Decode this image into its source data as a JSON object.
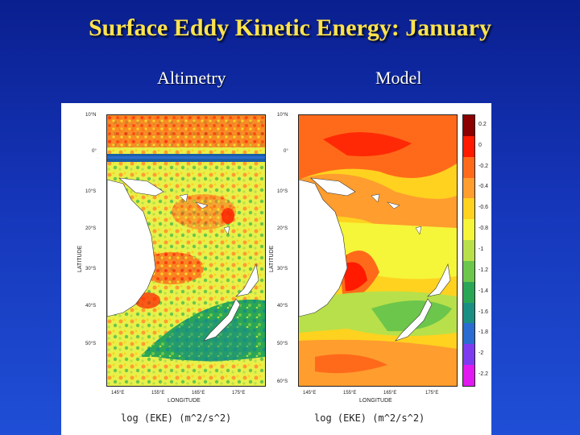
{
  "title": "Surface Eddy Kinetic Energy: January",
  "panels": {
    "left_label": "Altimetry",
    "right_label": "Model"
  },
  "left_map": {
    "lat_ticks": [
      "10°N",
      "0°",
      "10°S",
      "20°S",
      "30°S",
      "40°S",
      "50°S"
    ],
    "lon_ticks": [
      "145°E",
      "155°E",
      "165°E",
      "175°E"
    ],
    "xlabel": "LONGITUDE",
    "ylabel": "LATITUDE",
    "units": "log (EKE) (m^2/s^2)"
  },
  "right_map": {
    "lat_ticks": [
      "10°N",
      "0°",
      "10°S",
      "20°S",
      "30°S",
      "40°S",
      "50°S",
      "60°S"
    ],
    "lon_ticks": [
      "145°E",
      "155°E",
      "165°E",
      "175°E"
    ],
    "xlabel": "LONGITUDE",
    "ylabel": "LATITUDE",
    "units": "log (EKE) (m^2/s^2)"
  },
  "colorbar": {
    "labels": [
      "0.2",
      "0",
      "-0.2",
      "-0.4",
      "-0.6",
      "-0.8",
      "-1",
      "-1.2",
      "-1.4",
      "-1.6",
      "-1.8",
      "-2",
      "-2.2"
    ],
    "colors": [
      "#8b0000",
      "#ff1a00",
      "#ff6a1a",
      "#ff9d2e",
      "#ffd21f",
      "#f5f53a",
      "#b8e04a",
      "#6cc64b",
      "#2aa656",
      "#1b8f84",
      "#2a6cd0",
      "#7d3cf0",
      "#e01af0"
    ]
  }
}
